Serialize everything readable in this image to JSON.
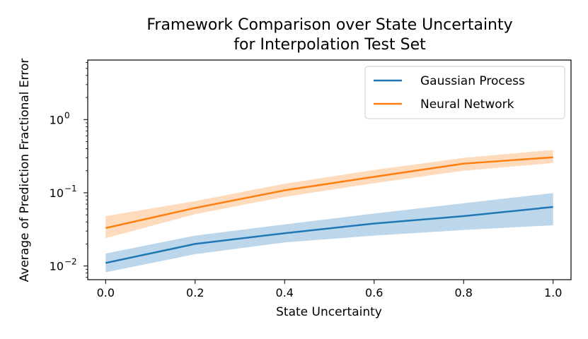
{
  "chart_data": {
    "type": "line",
    "title": [
      "Framework Comparison over State Uncertainty",
      "for Interpolation Test Set"
    ],
    "xlabel": "State Uncertainty",
    "ylabel": "Average of Prediction Fractional Error",
    "x": [
      0.0,
      0.2,
      0.4,
      0.6,
      0.8,
      1.0
    ],
    "xlim": [
      -0.04,
      1.04
    ],
    "ylim": [
      0.0065,
      6.5
    ],
    "yscale": "log",
    "xticks": [
      0.0,
      0.2,
      0.4,
      0.6,
      0.8,
      1.0
    ],
    "xtick_labels": [
      "0.0",
      "0.2",
      "0.4",
      "0.6",
      "0.8",
      "1.0"
    ],
    "yticks": [
      0.01,
      0.1,
      1
    ],
    "ytick_labels": [
      {
        "base": "10",
        "exp": "−2"
      },
      {
        "base": "10",
        "exp": "−1"
      },
      {
        "base": "10",
        "exp": "0"
      }
    ],
    "grid": false,
    "legend": "top-right",
    "series": [
      {
        "name": "Gaussian Process",
        "color": "#1f77b4",
        "band_color": "#a6c8e4",
        "values": [
          0.011,
          0.02,
          0.028,
          0.038,
          0.048,
          0.064
        ],
        "lower": [
          0.0082,
          0.0145,
          0.021,
          0.026,
          0.031,
          0.036
        ],
        "upper": [
          0.0148,
          0.026,
          0.037,
          0.052,
          0.072,
          0.099
        ]
      },
      {
        "name": "Neural Network",
        "color": "#ff7f0e",
        "band_color": "#ffcfa7",
        "values": [
          0.033,
          0.062,
          0.108,
          0.165,
          0.25,
          0.305
        ],
        "lower": [
          0.024,
          0.051,
          0.088,
          0.135,
          0.2,
          0.255
        ],
        "upper": [
          0.048,
          0.077,
          0.133,
          0.205,
          0.3,
          0.385
        ]
      }
    ]
  }
}
